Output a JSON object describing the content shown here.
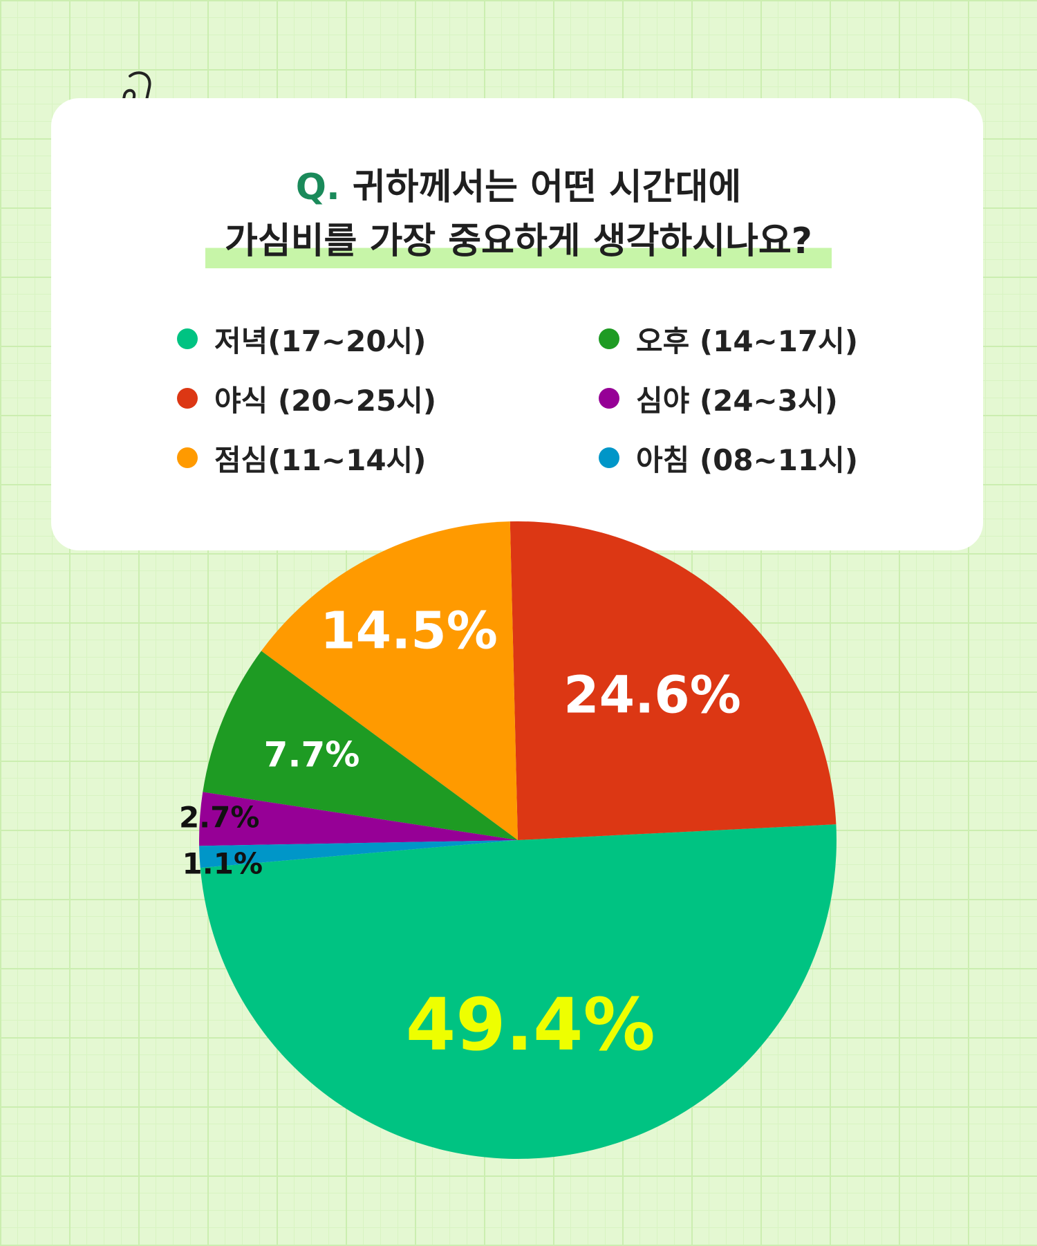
{
  "question": {
    "prefix": "Q.",
    "line1": "귀하께서는 어떤 시간대에",
    "line2": "가심비를 가장 중요하게 생각하시나요?"
  },
  "legend": [
    {
      "label": "저녁(17~20시)",
      "color": "#00c382"
    },
    {
      "label": "오후 (14~17시)",
      "color": "#1e9b23"
    },
    {
      "label": "야식 (20~25시)",
      "color": "#dc3714"
    },
    {
      "label": "심야 (24~3시)",
      "color": "#960096"
    },
    {
      "label": "점심(11~14시)",
      "color": "#ff9a00"
    },
    {
      "label": "아침 (08~11시)",
      "color": "#0096c8"
    }
  ],
  "chart_data": {
    "type": "pie",
    "slices": [
      {
        "name": "저녁(17~20시)",
        "value": 49.4,
        "label": "49.4%",
        "color": "#00c382",
        "label_color": "#eeff00",
        "label_position": "inside"
      },
      {
        "name": "야식 (20~25시)",
        "value": 24.6,
        "label": "24.6%",
        "color": "#dc3714",
        "label_color": "#ffffff",
        "label_position": "inside"
      },
      {
        "name": "점심(11~14시)",
        "value": 14.5,
        "label": "14.5%",
        "color": "#ff9a00",
        "label_color": "#ffffff",
        "label_position": "inside"
      },
      {
        "name": "오후 (14~17시)",
        "value": 7.7,
        "label": "7.7%",
        "color": "#1e9b23",
        "label_color": "#ffffff",
        "label_position": "inside"
      },
      {
        "name": "심야 (24~3시)",
        "value": 2.7,
        "label": "2.7%",
        "color": "#960096",
        "label_color": "#111111",
        "label_position": "outside"
      },
      {
        "name": "아침 (08~11시)",
        "value": 1.1,
        "label": "1.1%",
        "color": "#0096c8",
        "label_color": "#111111",
        "label_position": "outside"
      }
    ]
  }
}
